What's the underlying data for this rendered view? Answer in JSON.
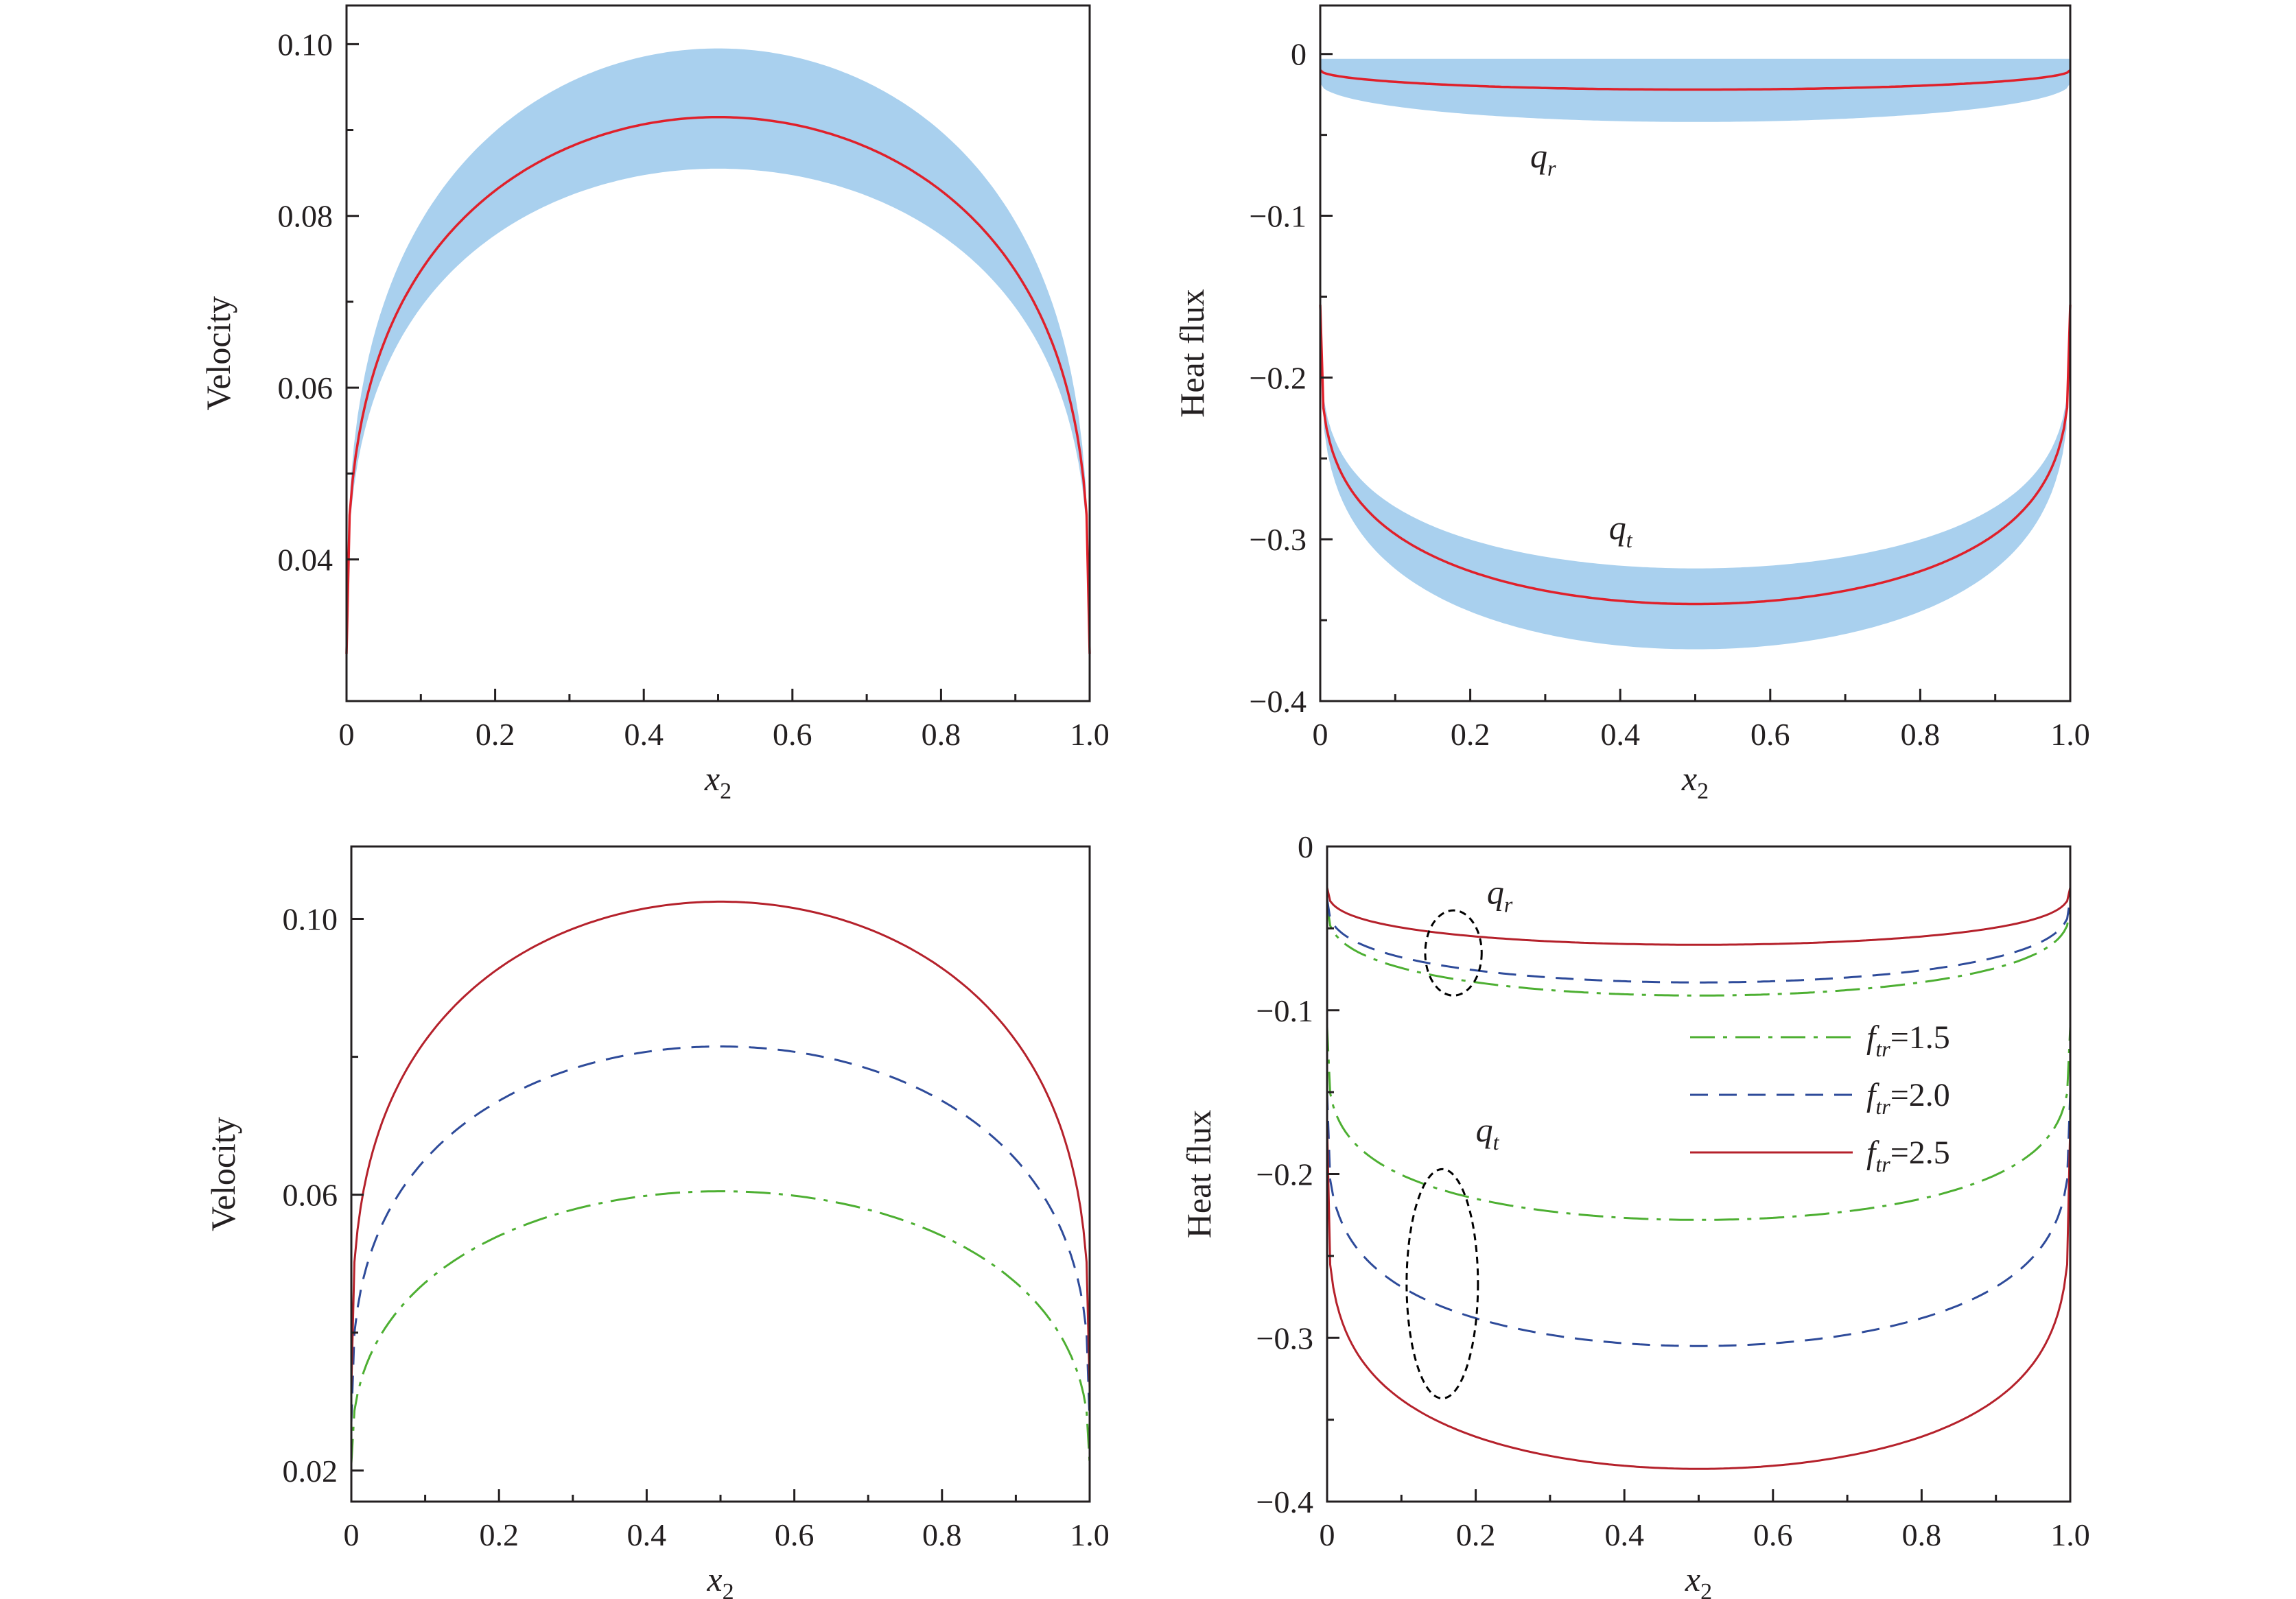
{
  "colors": {
    "mean_line": "#e0202a",
    "band": "#a9d0ee",
    "f15": "#4daf32",
    "f20": "#2e4b9a",
    "f25": "#b5212b",
    "axis": "#231f20",
    "ellipse": "#000000"
  },
  "chart_data": [
    {
      "id": "velocity-band",
      "type": "area",
      "xlabel": "x",
      "xlabel_sub": "2",
      "ylabel": "Velocity",
      "xlim": [
        0,
        1
      ],
      "ylim": [
        0.0235,
        0.1045
      ],
      "xticks": [
        0,
        0.2,
        0.4,
        0.6,
        0.8,
        1.0
      ],
      "xtick_labels": [
        "0",
        "0.2",
        "0.4",
        "0.6",
        "0.8",
        "1.0"
      ],
      "yticks": [
        0.04,
        0.06,
        0.08,
        0.1
      ],
      "ytick_labels": [
        "0.04",
        "0.06",
        "0.08",
        "0.10"
      ],
      "series": [
        {
          "kind": "mean",
          "end": 0.029,
          "center": 0.0915,
          "shape": 0.33
        },
        {
          "kind": "band-upper",
          "end": 0.029,
          "center": 0.0995,
          "shape": 0.33
        },
        {
          "kind": "band-lower",
          "end": 0.029,
          "center": 0.0855,
          "shape": 0.33
        }
      ]
    },
    {
      "id": "heatflux-band",
      "type": "area",
      "xlabel": "x",
      "xlabel_sub": "2",
      "ylabel": "Heat flux",
      "xlim": [
        0,
        1
      ],
      "ylim": [
        -0.4,
        0.03
      ],
      "xticks": [
        0,
        0.2,
        0.4,
        0.6,
        0.8,
        1.0
      ],
      "xtick_labels": [
        "0",
        "0.2",
        "0.4",
        "0.6",
        "0.8",
        "1.0"
      ],
      "yticks": [
        0,
        -0.1,
        -0.2,
        -0.3,
        -0.4
      ],
      "ytick_labels": [
        "0",
        "−0.1",
        "−0.2",
        "−0.3",
        "−0.4"
      ],
      "annotations": [
        {
          "text": "q",
          "sub": "r",
          "x": 0.28,
          "y": -0.07
        },
        {
          "text": "q",
          "sub": "t",
          "x": 0.385,
          "y": -0.3
        }
      ],
      "series": [
        {
          "kind": "mean",
          "end": -0.01,
          "center": -0.022,
          "shape": 0.5
        },
        {
          "kind": "band-upper",
          "end": -0.003,
          "center": -0.003,
          "shape": 0.5
        },
        {
          "kind": "band-lower",
          "end": -0.018,
          "center": -0.042,
          "shape": 0.5
        },
        {
          "kind": "mean",
          "end": -0.155,
          "center": -0.34,
          "shape": 0.26
        },
        {
          "kind": "band-upper",
          "end": -0.155,
          "center": -0.318,
          "shape": 0.26
        },
        {
          "kind": "band-lower",
          "end": -0.155,
          "center": -0.368,
          "shape": 0.26
        }
      ]
    },
    {
      "id": "velocity-ftr",
      "type": "line",
      "xlabel": "x",
      "xlabel_sub": "2",
      "ylabel": "Velocity",
      "xlim": [
        0,
        1
      ],
      "ylim": [
        0.0155,
        0.1105
      ],
      "xticks": [
        0,
        0.2,
        0.4,
        0.6,
        0.8,
        1.0
      ],
      "xtick_labels": [
        "0",
        "0.2",
        "0.4",
        "0.6",
        "0.8",
        "1.0"
      ],
      "yticks": [
        0.02,
        0.06,
        0.1
      ],
      "ytick_labels": [
        "0.02",
        "0.06",
        "0.10"
      ],
      "series": [
        {
          "style": "f15",
          "end": 0.021,
          "center": 0.0605,
          "shape": 0.4
        },
        {
          "style": "f20",
          "end": 0.027,
          "center": 0.0815,
          "shape": 0.35
        },
        {
          "style": "f25",
          "end": 0.032,
          "center": 0.1025,
          "shape": 0.33
        }
      ]
    },
    {
      "id": "heatflux-ftr",
      "type": "line",
      "xlabel": "x",
      "xlabel_sub": "2",
      "ylabel": "Heat flux",
      "xlim": [
        0,
        1
      ],
      "ylim": [
        -0.4,
        0.0
      ],
      "xticks": [
        0,
        0.2,
        0.4,
        0.6,
        0.8,
        1.0
      ],
      "xtick_labels": [
        "0",
        "0.2",
        "0.4",
        "0.6",
        "0.8",
        "1.0"
      ],
      "yticks": [
        0,
        -0.1,
        -0.2,
        -0.3,
        -0.4
      ],
      "ytick_labels": [
        "0",
        "−0.1",
        "−0.2",
        "−0.3",
        "−0.4"
      ],
      "legend": [
        {
          "style": "f15",
          "name": "f",
          "sub": "tr",
          "value": "=1.5"
        },
        {
          "style": "f20",
          "name": "f",
          "sub": "tr",
          "value": "=2.0"
        },
        {
          "style": "f25",
          "name": "f",
          "sub": "tr",
          "value": "=2.5"
        }
      ],
      "legend_position": "right",
      "annotations": [
        {
          "text": "q",
          "sub": "r",
          "x": 0.215,
          "y": -0.035
        },
        {
          "text": "q",
          "sub": "t",
          "x": 0.2,
          "y": -0.18
        }
      ],
      "ellipses": [
        {
          "cx": 0.17,
          "cy": -0.065,
          "rx": 0.038,
          "ry": 0.026
        },
        {
          "cx": 0.155,
          "cy": -0.267,
          "rx": 0.048,
          "ry": 0.07
        }
      ],
      "series": [
        {
          "style": "f15",
          "end": -0.035,
          "center": -0.091,
          "shape": 0.35
        },
        {
          "style": "f20",
          "end": -0.032,
          "center": -0.083,
          "shape": 0.35
        },
        {
          "style": "f25",
          "end": -0.025,
          "center": -0.06,
          "shape": 0.35
        },
        {
          "style": "f15",
          "end": -0.11,
          "center": -0.228,
          "shape": 0.26
        },
        {
          "style": "f20",
          "end": -0.15,
          "center": -0.305,
          "shape": 0.26
        },
        {
          "style": "f25",
          "end": -0.17,
          "center": -0.38,
          "shape": 0.22
        }
      ]
    }
  ]
}
